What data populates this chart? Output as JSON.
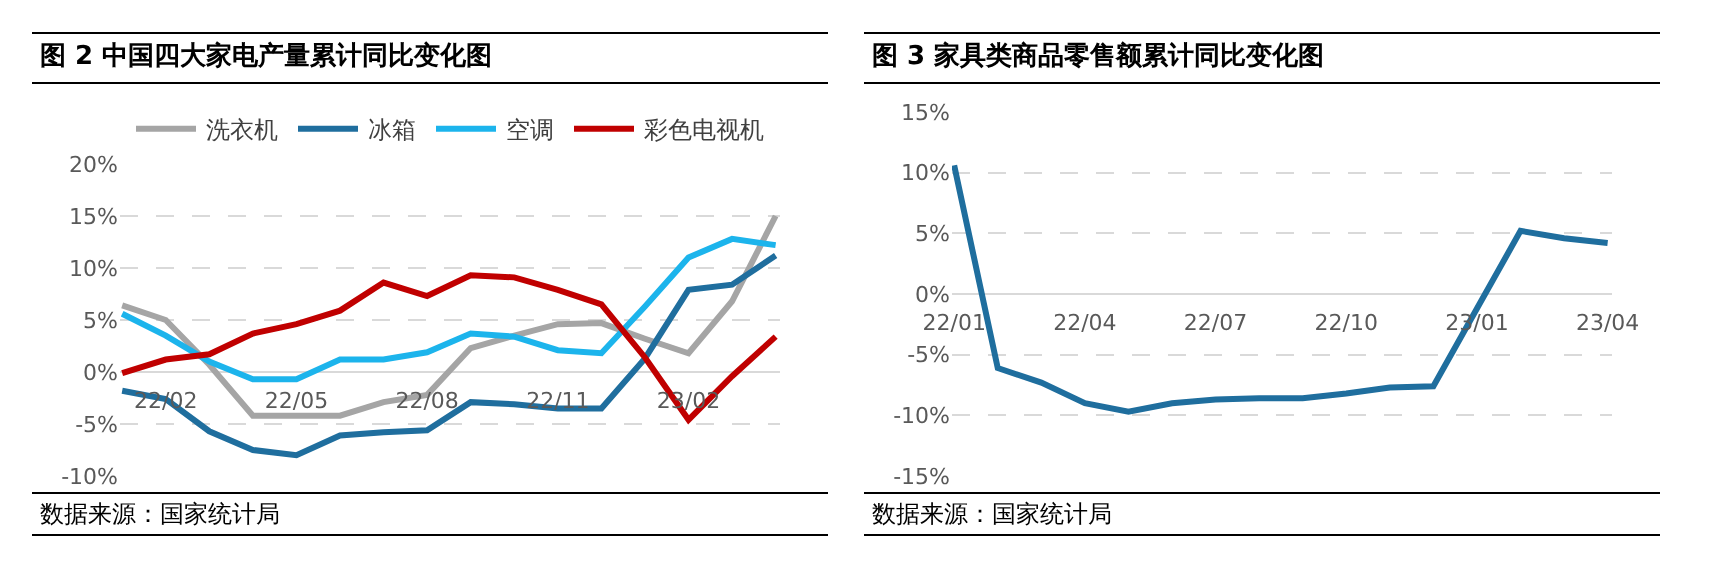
{
  "chart_data": [
    {
      "type": "line",
      "title": "图 2  中国四大家电产量累计同比变化图",
      "annotations": [
        "数据来源：国家统计局"
      ],
      "categories": [
        null,
        "22/02",
        null,
        null,
        "22/05",
        null,
        null,
        "22/08",
        null,
        null,
        "22/11",
        null,
        null,
        "23/02",
        null,
        null
      ],
      "series": [
        {
          "name": "洗衣机",
          "color": "#a5a5a5",
          "values": [
            6.4,
            5.0,
            0.7,
            -4.2,
            -4.2,
            -4.2,
            -2.9,
            -2.2,
            2.3,
            3.5,
            4.6,
            4.7,
            3.2,
            1.8,
            6.8,
            15.0
          ]
        },
        {
          "name": "冰箱",
          "color": "#1f6e9e",
          "values": [
            -1.8,
            -2.6,
            -5.7,
            -7.5,
            -8.0,
            -6.1,
            -5.8,
            -5.6,
            -2.9,
            -3.1,
            -3.5,
            -3.5,
            1.3,
            7.9,
            8.4,
            11.2
          ]
        },
        {
          "name": "空调",
          "color": "#1cb4ec",
          "values": [
            5.6,
            3.5,
            1.0,
            -0.7,
            -0.7,
            1.2,
            1.2,
            1.9,
            3.7,
            3.4,
            2.1,
            1.8,
            6.3,
            11.0,
            12.8,
            12.2
          ]
        },
        {
          "name": "彩色电视机",
          "color": "#c00000",
          "values": [
            -0.1,
            1.2,
            1.7,
            3.7,
            4.6,
            5.9,
            8.6,
            7.3,
            9.3,
            9.1,
            7.9,
            6.5,
            1.4,
            -4.6,
            -0.4,
            3.4
          ]
        }
      ],
      "ylim": [
        -10,
        20
      ],
      "yticks": [
        {
          "value": -10,
          "label": "-10%"
        },
        {
          "value": -5,
          "label": "-5%"
        },
        {
          "value": 0,
          "label": "0%"
        },
        {
          "value": 5,
          "label": "5%"
        },
        {
          "value": 10,
          "label": "10%"
        },
        {
          "value": 15,
          "label": "15%"
        },
        {
          "value": 20,
          "label": "20%"
        }
      ],
      "grid": "y",
      "legend": "top",
      "marker": "none",
      "line_style": "solid"
    },
    {
      "type": "line",
      "title": "图 3  家具类商品零售额累计同比变化图",
      "annotations": [
        "数据来源：国家统计局"
      ],
      "categories": [
        "22/01",
        null,
        null,
        "22/04",
        null,
        null,
        "22/07",
        null,
        null,
        "22/10",
        null,
        null,
        "23/01",
        null,
        null,
        "23/04"
      ],
      "series": [
        {
          "color": "#1f6e9e",
          "values": [
            10.6,
            -6.1,
            -7.3,
            -9.0,
            -9.7,
            -9.0,
            -8.7,
            -8.6,
            -8.6,
            -8.2,
            -7.7,
            -7.6,
            -1.2,
            5.2,
            4.6,
            4.2
          ]
        }
      ],
      "ylim": [
        -15,
        15
      ],
      "yticks": [
        {
          "value": -15,
          "label": "-15%"
        },
        {
          "value": -10,
          "label": "-10%"
        },
        {
          "value": -5,
          "label": "-5%"
        },
        {
          "value": 0,
          "label": "0%"
        },
        {
          "value": 5,
          "label": "5%"
        },
        {
          "value": 10,
          "label": "10%"
        },
        {
          "value": 15,
          "label": "15%"
        }
      ],
      "grid": "y",
      "legend": false,
      "marker": "none",
      "line_style": "solid"
    }
  ]
}
